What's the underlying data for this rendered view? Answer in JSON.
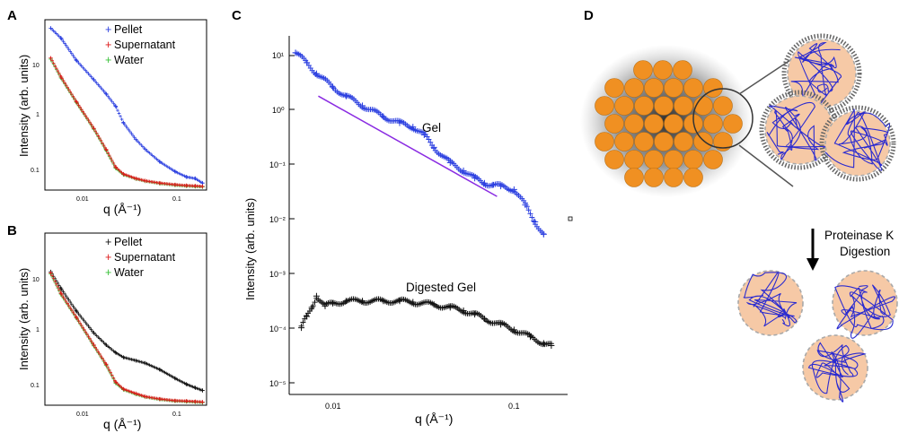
{
  "colors": {
    "blue": "#2b3fe0",
    "red": "#dd1a1a",
    "green": "#37c137",
    "black": "#111111",
    "purple": "#8a2be2",
    "orange": "#f09022",
    "peach": "#f6c9a6",
    "coil_blue": "#2b2bd0"
  },
  "panels": {
    "A": {
      "letter": "A",
      "ylabel": "Intensity (arb. units)",
      "xlabel": "q (Å⁻¹)",
      "legend": [
        "Pellet",
        "Supernatant",
        "Water"
      ],
      "xticks": [
        "0.01",
        "0.1"
      ],
      "yticks": [
        "10",
        "1",
        "0.1"
      ]
    },
    "B": {
      "letter": "B",
      "ylabel": "Intensity (arb. units)",
      "xlabel": "q (Å⁻¹)",
      "legend": [
        "Pellet",
        "Supernatant",
        "Water"
      ],
      "xticks": [
        "0.01",
        "0.1"
      ],
      "yticks": [
        "10",
        "1",
        "0.1"
      ]
    },
    "C": {
      "letter": "C",
      "ylabel": "Intensity (arb. units)",
      "xlabel": "q (Å⁻¹)",
      "annotation_gel": "Gel",
      "annotation_digested": "Digested Gel",
      "xticks": [
        "0.01",
        "0.1"
      ]
    },
    "D": {
      "letter": "D",
      "arrow_label_line1": "Proteinase K",
      "arrow_label_line2": "Digestion"
    }
  },
  "chart_data": [
    {
      "panel": "A",
      "type": "scatter",
      "xscale": "log",
      "yscale": "log",
      "xlim": [
        0.005,
        0.2
      ],
      "ylim": [
        0.05,
        40
      ],
      "xlabel": "q (Å⁻¹)",
      "ylabel": "Intensity (arb. units)",
      "legend_position": "top-right",
      "series": [
        {
          "name": "Pellet",
          "color": "blue",
          "marker": "+",
          "x": [
            0.0055,
            0.007,
            0.01,
            0.015,
            0.02,
            0.025,
            0.03,
            0.04,
            0.05,
            0.07,
            0.1,
            0.13,
            0.16,
            0.19
          ],
          "y": [
            38,
            25,
            10,
            4.5,
            2.5,
            1.5,
            0.75,
            0.38,
            0.25,
            0.15,
            0.1,
            0.08,
            0.075,
            0.062
          ]
        },
        {
          "name": "Supernatant",
          "color": "red",
          "marker": "+",
          "x": [
            0.0055,
            0.007,
            0.01,
            0.015,
            0.02,
            0.025,
            0.03,
            0.04,
            0.05,
            0.07,
            0.1,
            0.13,
            0.16,
            0.19
          ],
          "y": [
            11,
            5,
            1.8,
            0.6,
            0.25,
            0.12,
            0.09,
            0.075,
            0.068,
            0.062,
            0.058,
            0.056,
            0.055,
            0.054
          ]
        },
        {
          "name": "Water",
          "color": "green",
          "marker": "+",
          "x": [
            0.0055,
            0.007,
            0.01,
            0.015,
            0.02,
            0.025,
            0.03,
            0.04,
            0.05,
            0.07,
            0.1,
            0.13,
            0.16,
            0.19
          ],
          "y": [
            10.5,
            4.8,
            1.75,
            0.58,
            0.24,
            0.115,
            0.088,
            0.074,
            0.067,
            0.061,
            0.057,
            0.055,
            0.054,
            0.053
          ]
        }
      ]
    },
    {
      "panel": "B",
      "type": "scatter",
      "xscale": "log",
      "yscale": "log",
      "xlim": [
        0.005,
        0.2
      ],
      "ylim": [
        0.05,
        40
      ],
      "xlabel": "q (Å⁻¹)",
      "ylabel": "Intensity (arb. units)",
      "legend_position": "top-right",
      "series": [
        {
          "name": "Pellet",
          "color": "black",
          "marker": "+",
          "x": [
            0.0055,
            0.007,
            0.01,
            0.015,
            0.02,
            0.025,
            0.03,
            0.04,
            0.05,
            0.07,
            0.1,
            0.13,
            0.16,
            0.19
          ],
          "y": [
            11,
            5.5,
            2.2,
            0.9,
            0.55,
            0.4,
            0.33,
            0.29,
            0.26,
            0.2,
            0.14,
            0.11,
            0.095,
            0.085
          ]
        },
        {
          "name": "Supernatant",
          "color": "red",
          "marker": "+",
          "x": [
            0.0055,
            0.007,
            0.01,
            0.015,
            0.02,
            0.025,
            0.03,
            0.04,
            0.05,
            0.07,
            0.1,
            0.13,
            0.16,
            0.19
          ],
          "y": [
            10.5,
            4.5,
            1.7,
            0.55,
            0.25,
            0.12,
            0.09,
            0.075,
            0.066,
            0.06,
            0.056,
            0.055,
            0.054,
            0.053
          ]
        },
        {
          "name": "Water",
          "color": "green",
          "marker": "+",
          "x": [
            0.0055,
            0.007,
            0.01,
            0.015,
            0.02,
            0.025,
            0.03,
            0.04,
            0.05,
            0.07,
            0.1,
            0.13,
            0.16,
            0.19
          ],
          "y": [
            10,
            4.3,
            1.65,
            0.53,
            0.24,
            0.115,
            0.088,
            0.073,
            0.065,
            0.059,
            0.055,
            0.054,
            0.053,
            0.052
          ]
        }
      ]
    },
    {
      "panel": "C",
      "type": "scatter",
      "xscale": "log",
      "yscale": "log",
      "xlim": [
        0.0055,
        0.25
      ],
      "ylim": [
        3e-06,
        30
      ],
      "xlabel": "q (Å⁻¹)",
      "ylabel": "Intensity (arb. units)",
      "yticks": [
        "10¹",
        "10⁰",
        "10⁻¹",
        "10⁻²",
        "10⁻³",
        "10⁻⁴",
        "10⁻⁵"
      ],
      "series": [
        {
          "name": "Gel",
          "color": "blue",
          "marker": "+",
          "x": [
            0.006,
            0.007,
            0.008,
            0.01,
            0.012,
            0.015,
            0.02,
            0.025,
            0.03,
            0.035,
            0.04,
            0.05,
            0.06,
            0.07,
            0.08,
            0.09,
            0.1,
            0.12,
            0.14,
            0.16,
            0.18
          ],
          "y": [
            14,
            9,
            5.5,
            3,
            2,
            1.3,
            0.8,
            0.6,
            0.5,
            0.35,
            0.2,
            0.1,
            0.07,
            0.05,
            0.04,
            0.037,
            0.035,
            0.03,
            0.015,
            0.007,
            0.004
          ]
        },
        {
          "name": "Digested Gel",
          "color": "black",
          "marker": "+",
          "x": [
            0.0065,
            0.007,
            0.0075,
            0.008,
            0.009,
            0.01,
            0.012,
            0.015,
            0.02,
            0.025,
            0.03,
            0.04,
            0.05,
            0.06,
            0.07,
            0.08,
            0.1,
            0.12,
            0.15,
            0.18,
            0.2
          ],
          "y": [
            6e-05,
            0.0001,
            0.00015,
            0.00025,
            0.00016,
            0.00018,
            0.0002,
            0.0002,
            0.0002,
            0.0002,
            0.00019,
            0.00017,
            0.00015,
            0.00013,
            0.00011,
            9e-05,
            7e-05,
            5.5e-05,
            4e-05,
            3e-05,
            2.7e-05
          ]
        }
      ],
      "reference_line": {
        "color": "purple",
        "x": [
          0.0082,
          0.095
        ],
        "y": [
          2,
          0.022
        ]
      }
    }
  ]
}
